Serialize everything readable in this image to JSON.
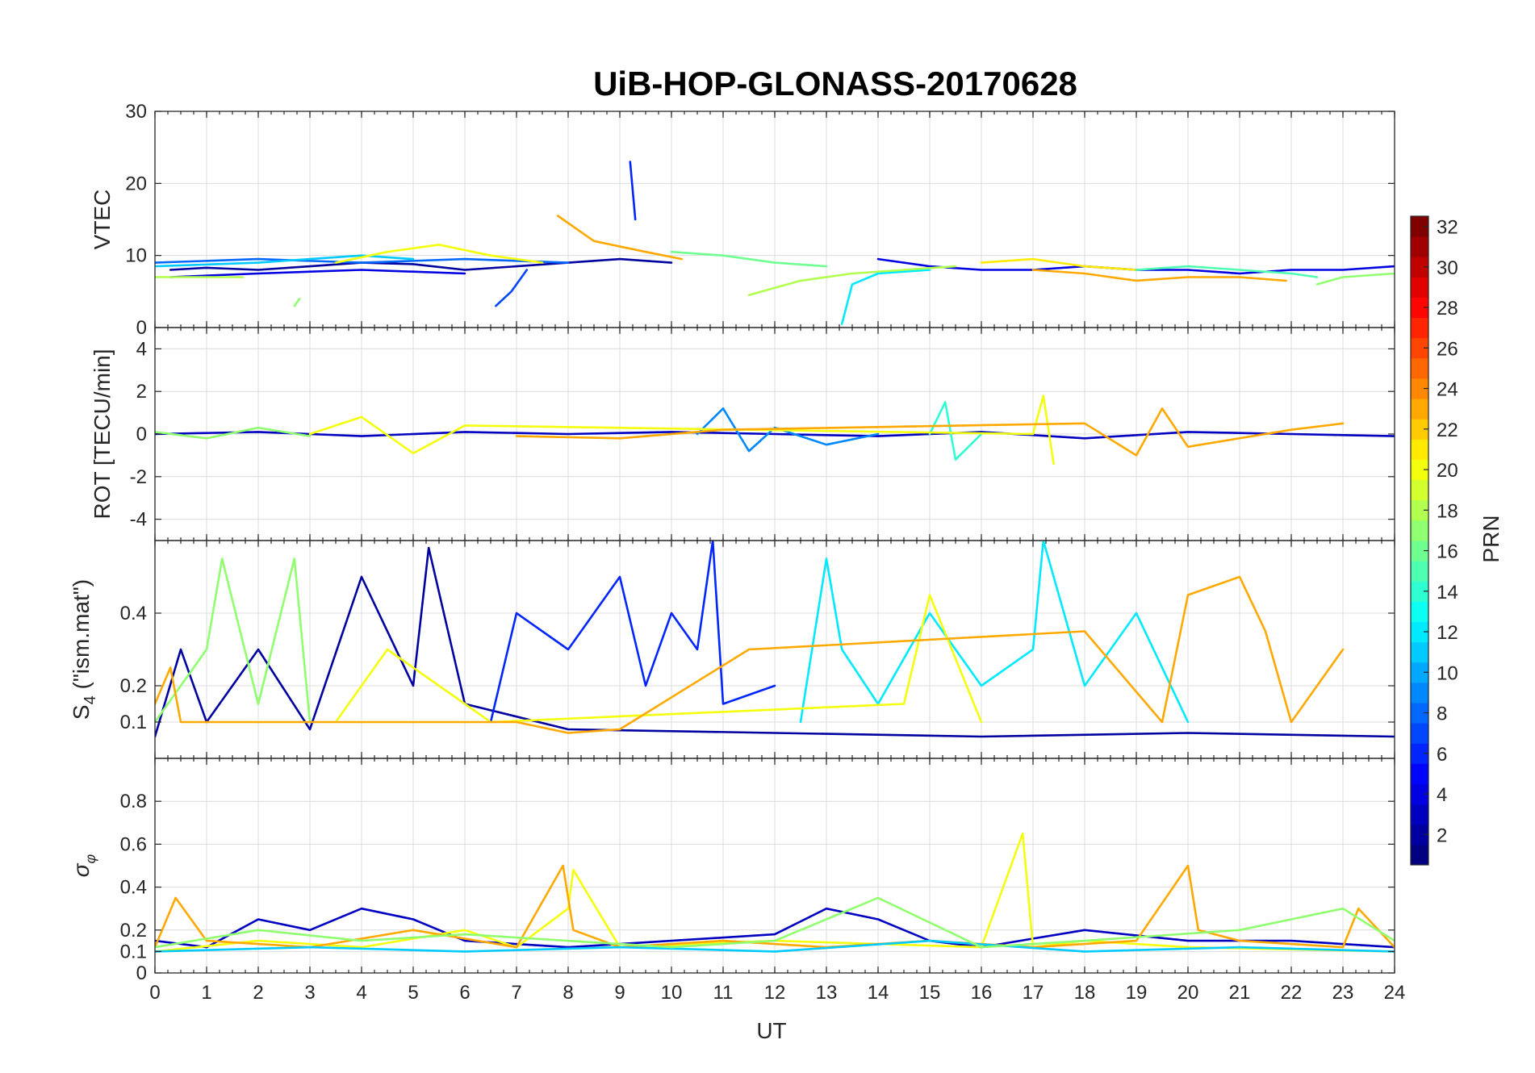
{
  "figure": {
    "title": "UiB-HOP-GLONASS-20170628",
    "xlabel": "UT",
    "xlim": [
      0,
      24
    ],
    "xticks": [
      "0",
      "1",
      "2",
      "3",
      "4",
      "5",
      "6",
      "7",
      "8",
      "9",
      "10",
      "11",
      "12",
      "13",
      "14",
      "15",
      "16",
      "17",
      "18",
      "19",
      "20",
      "21",
      "22",
      "23",
      "24"
    ],
    "grid": true
  },
  "colorbar": {
    "label": "PRN",
    "colormap": "jet",
    "range": [
      1,
      32
    ],
    "ticks": [
      "2",
      "4",
      "6",
      "8",
      "10",
      "12",
      "14",
      "16",
      "18",
      "20",
      "22",
      "24",
      "26",
      "28",
      "30",
      "32"
    ]
  },
  "chart_data": [
    {
      "type": "line",
      "panel": "VTEC",
      "ylabel": "VTEC",
      "ylim": [
        0,
        30
      ],
      "yticks": [
        "0",
        "10",
        "20",
        "30"
      ],
      "series": [
        {
          "prn": 2,
          "x": [
            0.3,
            1,
            2,
            3,
            4,
            5,
            6,
            7,
            8,
            9,
            10
          ],
          "y": [
            8,
            8.3,
            8,
            8.5,
            9,
            8.8,
            8,
            8.5,
            9,
            9.5,
            9
          ]
        },
        {
          "prn": 4,
          "x": [
            0.3,
            2,
            4,
            6
          ],
          "y": [
            7,
            7.5,
            8,
            7.5
          ]
        },
        {
          "prn": 6,
          "x": [
            9.2,
            9.3
          ],
          "y": [
            23,
            15
          ]
        },
        {
          "prn": 7,
          "x": [
            6.6,
            6.9,
            7.2
          ],
          "y": [
            3,
            5,
            8
          ]
        },
        {
          "prn": 8,
          "x": [
            0,
            2,
            4,
            6,
            8
          ],
          "y": [
            9,
            9.5,
            9,
            9.5,
            9
          ]
        },
        {
          "prn": 4,
          "x": [
            14,
            15,
            16,
            17,
            18,
            19,
            20,
            21,
            22,
            23,
            24
          ],
          "y": [
            9.5,
            8.5,
            8,
            8,
            8.5,
            8,
            8,
            7.5,
            8,
            8,
            8.5
          ]
        },
        {
          "prn": 12,
          "x": [
            13.3,
            13.5,
            14,
            15
          ],
          "y": [
            0.5,
            6,
            7.5,
            8
          ]
        },
        {
          "prn": 11,
          "x": [
            0,
            2,
            3,
            4,
            5
          ],
          "y": [
            8.5,
            9,
            9.5,
            10,
            9.5
          ]
        },
        {
          "prn": 18,
          "x": [
            0,
            1,
            1.7
          ],
          "y": [
            7,
            7,
            7
          ]
        },
        {
          "prn": 17,
          "x": [
            2.7,
            2.8
          ],
          "y": [
            3,
            4
          ]
        },
        {
          "prn": 20,
          "x": [
            3.5,
            4.5,
            5.5,
            6.5,
            7.5
          ],
          "y": [
            9,
            10.5,
            11.5,
            10,
            9
          ]
        },
        {
          "prn": 23,
          "x": [
            7.8,
            8.5,
            9.5,
            10.2
          ],
          "y": [
            15.5,
            12,
            10.5,
            9.5
          ]
        },
        {
          "prn": 16,
          "x": [
            10,
            11,
            12,
            13
          ],
          "y": [
            10.5,
            10,
            9,
            8.5
          ]
        },
        {
          "prn": 18,
          "x": [
            11.5,
            12.5,
            13.5,
            14.5,
            15.5
          ],
          "y": [
            4.5,
            6.5,
            7.5,
            8,
            8.5
          ]
        },
        {
          "prn": 21,
          "x": [
            16,
            17,
            18,
            19
          ],
          "y": [
            9,
            9.5,
            8.5,
            8
          ]
        },
        {
          "prn": 23,
          "x": [
            17,
            18,
            19,
            20,
            21,
            21.9
          ],
          "y": [
            8,
            7.5,
            6.5,
            7,
            7,
            6.5
          ]
        },
        {
          "prn": 15,
          "x": [
            19,
            20,
            21,
            22,
            22.5
          ],
          "y": [
            8,
            8.5,
            8,
            7.5,
            7
          ]
        },
        {
          "prn": 17,
          "x": [
            22.5,
            23,
            24
          ],
          "y": [
            6,
            7,
            7.5
          ]
        }
      ]
    },
    {
      "type": "line",
      "panel": "ROT",
      "ylabel": "ROT [TECU/min]",
      "ylim": [
        -5,
        5
      ],
      "yticks": [
        "-4",
        "-2",
        "0",
        "2",
        "4"
      ],
      "series": [
        {
          "prn": 3,
          "x": [
            0,
            2,
            4,
            6,
            8,
            10,
            12,
            14,
            16,
            18,
            20,
            22,
            24
          ],
          "y": [
            0,
            0.1,
            -0.1,
            0.1,
            0,
            0.1,
            0,
            -0.1,
            0.1,
            -0.2,
            0.1,
            0,
            -0.1
          ]
        },
        {
          "prn": 9,
          "x": [
            10.5,
            11,
            11.5,
            12,
            13,
            14
          ],
          "y": [
            0,
            1.2,
            -0.8,
            0.3,
            -0.5,
            0
          ]
        },
        {
          "prn": 14,
          "x": [
            15,
            15.3,
            15.5,
            16
          ],
          "y": [
            0,
            1.5,
            -1.2,
            0
          ]
        },
        {
          "prn": 20,
          "x": [
            3,
            4,
            5,
            6,
            17,
            17.2,
            17.4
          ],
          "y": [
            0,
            0.8,
            -0.9,
            0.4,
            0,
            1.8,
            -1.4
          ]
        },
        {
          "prn": 23,
          "x": [
            7,
            9,
            11,
            18,
            19,
            19.5,
            20,
            22,
            23
          ],
          "y": [
            -0.1,
            -0.2,
            0.2,
            0.5,
            -1,
            1.2,
            -0.6,
            0.2,
            0.5
          ]
        },
        {
          "prn": 17,
          "x": [
            0,
            1,
            2,
            3
          ],
          "y": [
            0.1,
            -0.2,
            0.3,
            -0.1
          ]
        }
      ]
    },
    {
      "type": "line",
      "panel": "S4",
      "ylabel": "S4 (\"ism.mat\")",
      "ylim": [
        0,
        0.6
      ],
      "yticks": [
        "0.1",
        "0.2",
        "0.4"
      ],
      "series": [
        {
          "prn": 2,
          "x": [
            0,
            0.5,
            1,
            2,
            3,
            4,
            5,
            5.3,
            6,
            8,
            12,
            16,
            20,
            24
          ],
          "y": [
            0.06,
            0.3,
            0.1,
            0.3,
            0.08,
            0.5,
            0.2,
            0.58,
            0.15,
            0.08,
            0.07,
            0.06,
            0.07,
            0.06
          ]
        },
        {
          "prn": 6,
          "x": [
            6.5,
            7,
            8,
            9,
            9.5,
            10,
            10.5,
            10.8,
            11,
            12
          ],
          "y": [
            0.1,
            0.4,
            0.3,
            0.5,
            0.2,
            0.4,
            0.3,
            0.6,
            0.15,
            0.2
          ]
        },
        {
          "prn": 12,
          "x": [
            12.5,
            13,
            13.3,
            14,
            15,
            16,
            17,
            17.2,
            18,
            19,
            20
          ],
          "y": [
            0.1,
            0.55,
            0.3,
            0.15,
            0.4,
            0.2,
            0.3,
            0.6,
            0.2,
            0.4,
            0.1
          ]
        },
        {
          "prn": 17,
          "x": [
            0,
            1,
            1.3,
            2,
            2.7,
            3
          ],
          "y": [
            0.1,
            0.3,
            0.55,
            0.15,
            0.55,
            0.1
          ]
        },
        {
          "prn": 20,
          "x": [
            3.5,
            4.5,
            5.5,
            6.5,
            14.5,
            15,
            16
          ],
          "y": [
            0.1,
            0.3,
            0.2,
            0.1,
            0.15,
            0.45,
            0.1
          ]
        },
        {
          "prn": 23,
          "x": [
            0,
            0.3,
            0.5,
            7,
            8,
            9,
            11.5,
            18,
            19.5,
            20,
            21,
            21.5,
            22,
            23
          ],
          "y": [
            0.15,
            0.25,
            0.1,
            0.1,
            0.07,
            0.08,
            0.3,
            0.35,
            0.1,
            0.45,
            0.5,
            0.35,
            0.1,
            0.3
          ]
        }
      ]
    },
    {
      "type": "line",
      "panel": "sigma_phi",
      "ylabel": "σφ",
      "ylim": [
        0,
        1
      ],
      "yticks": [
        "0",
        "0.1",
        "0.2",
        "0.4",
        "0.6",
        "0.8"
      ],
      "series": [
        {
          "prn": 3,
          "x": [
            0,
            1,
            2,
            3,
            4,
            5,
            6,
            8,
            10,
            12,
            13,
            14,
            15,
            16,
            18,
            20,
            22,
            24
          ],
          "y": [
            0.15,
            0.12,
            0.25,
            0.2,
            0.3,
            0.25,
            0.15,
            0.12,
            0.15,
            0.18,
            0.3,
            0.25,
            0.15,
            0.12,
            0.2,
            0.15,
            0.15,
            0.12
          ]
        },
        {
          "prn": 20,
          "x": [
            0,
            2,
            4,
            6,
            7,
            8,
            8.1,
            9,
            12,
            16,
            16.8,
            17,
            18,
            20,
            24
          ],
          "y": [
            0.1,
            0.15,
            0.12,
            0.2,
            0.12,
            0.3,
            0.48,
            0.12,
            0.15,
            0.12,
            0.65,
            0.12,
            0.15,
            0.12,
            0.1
          ]
        },
        {
          "prn": 23,
          "x": [
            0,
            0.4,
            1,
            3,
            5,
            7,
            7.9,
            8.1,
            9,
            11,
            13,
            15,
            17,
            19,
            20,
            20.2,
            21,
            23,
            23.3,
            24
          ],
          "y": [
            0.12,
            0.35,
            0.15,
            0.12,
            0.2,
            0.12,
            0.5,
            0.2,
            0.12,
            0.15,
            0.12,
            0.15,
            0.12,
            0.15,
            0.5,
            0.2,
            0.15,
            0.12,
            0.3,
            0.12
          ]
        },
        {
          "prn": 11,
          "x": [
            0,
            3,
            6,
            9,
            12,
            15,
            18,
            21,
            24
          ],
          "y": [
            0.1,
            0.12,
            0.1,
            0.12,
            0.1,
            0.15,
            0.1,
            0.12,
            0.1
          ]
        },
        {
          "prn": 17,
          "x": [
            0,
            2,
            4,
            6,
            10,
            12,
            14,
            16,
            18,
            21,
            23,
            24
          ],
          "y": [
            0.12,
            0.2,
            0.15,
            0.18,
            0.12,
            0.15,
            0.35,
            0.12,
            0.15,
            0.2,
            0.3,
            0.15
          ]
        }
      ]
    }
  ]
}
